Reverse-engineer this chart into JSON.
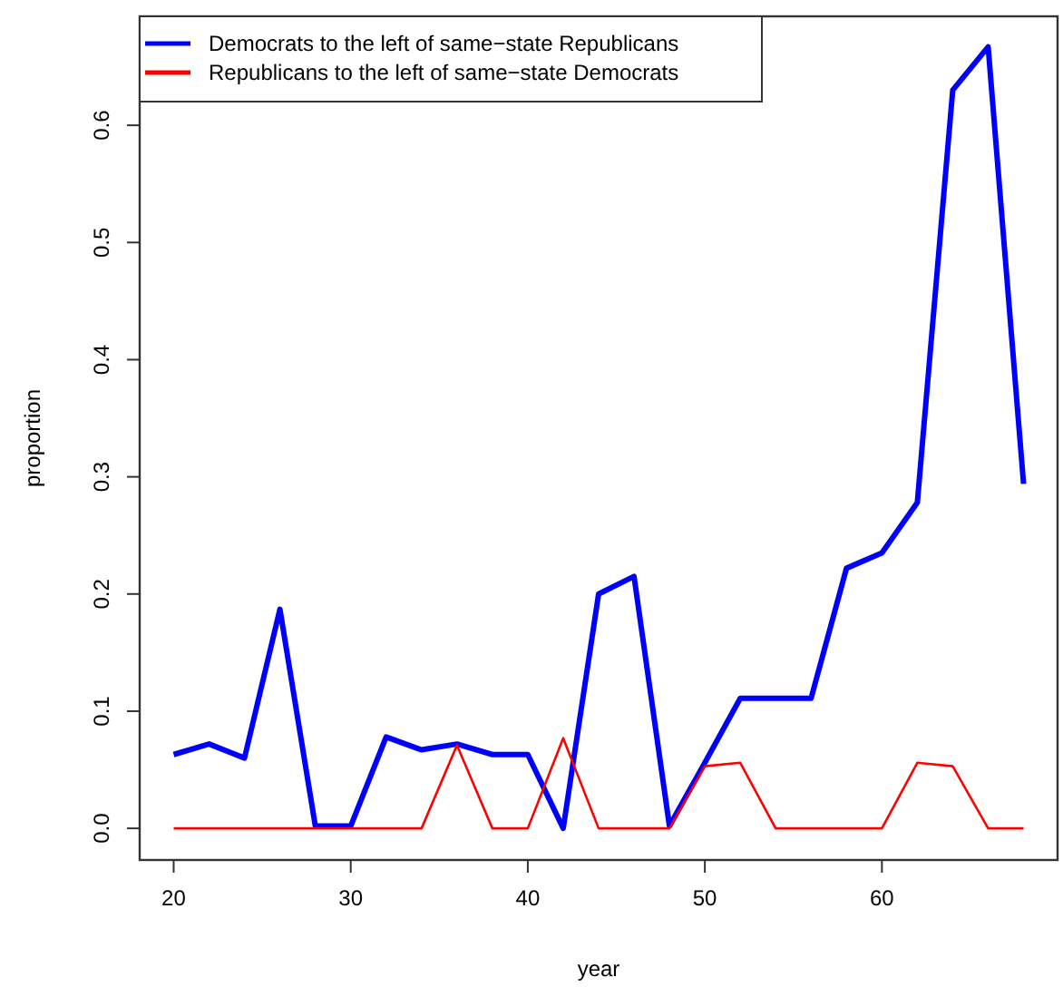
{
  "chart_data": {
    "type": "line",
    "xlabel": "year",
    "ylabel": "proportion",
    "x": [
      20,
      22,
      24,
      26,
      28,
      30,
      32,
      34,
      36,
      38,
      40,
      42,
      44,
      46,
      48,
      50,
      52,
      54,
      56,
      58,
      60,
      62,
      64,
      66,
      68
    ],
    "series": [
      {
        "name": "Democrats to the left of same−state Republicans",
        "color": "#0000ff",
        "values": [
          0.063,
          0.072,
          0.06,
          0.187,
          0.002,
          0.002,
          0.078,
          0.067,
          0.072,
          0.063,
          0.063,
          0.0,
          0.2,
          0.215,
          0.002,
          0.056,
          0.111,
          0.111,
          0.111,
          0.222,
          0.235,
          0.278,
          0.63,
          0.667,
          0.294
        ]
      },
      {
        "name": "Republicans to the left of same−state Democrats",
        "color": "#ff0000",
        "values": [
          0,
          0,
          0,
          0,
          0,
          0,
          0,
          0,
          0.071,
          0,
          0,
          0.077,
          0,
          0,
          0,
          0.053,
          0.056,
          0,
          0,
          0,
          0,
          0.056,
          0.053,
          0,
          0
        ]
      }
    ],
    "xlim": [
      18.08,
      69.92
    ],
    "xticks": [
      20,
      30,
      40,
      50,
      60
    ],
    "ylim": [
      -0.027,
      0.693
    ],
    "yticks": [
      {
        "value": 0,
        "label": "0.0"
      },
      0.1,
      0.2,
      0.3,
      0.4,
      0.5,
      0.6
    ],
    "grid": false,
    "legend": "top left",
    "marker": "none",
    "line_style": "solid"
  }
}
